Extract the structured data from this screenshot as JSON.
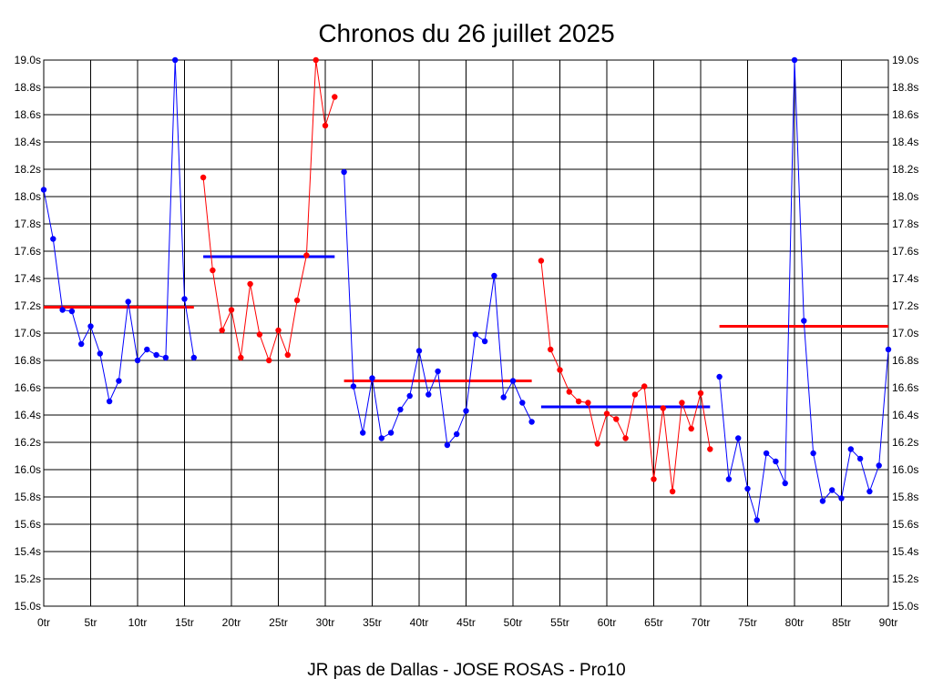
{
  "chart_data": {
    "type": "line",
    "title": "Chronos du 26 juillet 2025",
    "footer": "JR pas de Dallas - JOSE ROSAS - Pro10",
    "xlim": [
      0,
      90
    ],
    "ylim": [
      15.0,
      19.0
    ],
    "grid": true,
    "x_ticks": [
      0,
      5,
      10,
      15,
      20,
      25,
      30,
      35,
      40,
      45,
      50,
      55,
      60,
      65,
      70,
      75,
      80,
      85,
      90
    ],
    "x_tick_labels": [
      "0tr",
      "5tr",
      "10tr",
      "15tr",
      "20tr",
      "25tr",
      "30tr",
      "35tr",
      "40tr",
      "45tr",
      "50tr",
      "55tr",
      "60tr",
      "65tr",
      "70tr",
      "75tr",
      "80tr",
      "85tr",
      "90tr"
    ],
    "y_ticks": [
      15.0,
      15.2,
      15.4,
      15.6,
      15.8,
      16.0,
      16.2,
      16.4,
      16.6,
      16.8,
      17.0,
      17.2,
      17.4,
      17.6,
      17.8,
      18.0,
      18.2,
      18.4,
      18.6,
      18.8,
      19.0
    ],
    "y_tick_labels": [
      "15.0s",
      "15.2s",
      "15.4s",
      "15.6s",
      "15.8s",
      "16.0s",
      "16.2s",
      "16.4s",
      "16.6s",
      "16.8s",
      "17.0s",
      "17.2s",
      "17.4s",
      "17.6s",
      "17.8s",
      "18.0s",
      "18.2s",
      "18.4s",
      "18.6s",
      "18.8s",
      "19.0s"
    ],
    "colors": {
      "blue": "#0000ff",
      "red": "#ff0000"
    },
    "series": [
      {
        "color": "blue",
        "x": [
          0,
          1,
          2,
          3,
          4,
          5,
          6,
          7,
          8,
          9,
          10,
          11,
          12,
          13,
          14,
          15,
          16
        ],
        "y": [
          18.05,
          17.69,
          17.17,
          17.16,
          16.92,
          17.05,
          16.85,
          16.5,
          16.65,
          17.23,
          16.8,
          16.88,
          16.84,
          16.82,
          19.0,
          17.25,
          16.82
        ]
      },
      {
        "color": "red",
        "x": [
          17,
          18,
          19,
          20,
          21,
          22,
          23,
          24,
          25,
          26,
          27,
          28,
          29,
          30,
          31
        ],
        "y": [
          18.14,
          17.46,
          17.02,
          17.17,
          16.82,
          17.36,
          16.99,
          16.8,
          17.02,
          16.84,
          17.24,
          17.57,
          19.0,
          18.52,
          18.73
        ]
      },
      {
        "color": "blue",
        "x": [
          32,
          33,
          34,
          35,
          36,
          37,
          38,
          39,
          40,
          41,
          42,
          43,
          44,
          45,
          46,
          47,
          48,
          49,
          50,
          51,
          52
        ],
        "y": [
          18.18,
          16.61,
          16.27,
          16.67,
          16.23,
          16.27,
          16.44,
          16.54,
          16.87,
          16.55,
          16.72,
          16.18,
          16.26,
          16.43,
          16.99,
          16.94,
          17.42,
          16.53,
          16.65,
          16.49,
          16.35
        ]
      },
      {
        "color": "red",
        "x": [
          53,
          54,
          55,
          56,
          57,
          58,
          59,
          60,
          61,
          62,
          63,
          64,
          65,
          66,
          67,
          68,
          69,
          70,
          71
        ],
        "y": [
          17.53,
          16.88,
          16.73,
          16.57,
          16.5,
          16.49,
          16.19,
          16.41,
          16.37,
          16.23,
          16.55,
          16.61,
          15.93,
          16.45,
          15.84,
          16.49,
          16.3,
          16.56,
          16.15
        ]
      },
      {
        "color": "blue",
        "x": [
          72,
          73,
          74,
          75,
          76,
          77,
          78,
          79,
          80,
          81,
          82,
          83,
          84,
          85,
          86,
          87,
          88,
          89,
          90
        ],
        "y": [
          16.68,
          15.93,
          16.23,
          15.86,
          15.63,
          16.12,
          16.06,
          15.9,
          19.0,
          17.09,
          16.12,
          15.77,
          15.85,
          15.79,
          16.15,
          16.08,
          15.84,
          16.03,
          16.88
        ]
      }
    ],
    "averages": [
      {
        "color": "red",
        "x_start": 0,
        "x_end": 16,
        "y": 17.19
      },
      {
        "color": "blue",
        "x_start": 17,
        "x_end": 31,
        "y": 17.56
      },
      {
        "color": "red",
        "x_start": 32,
        "x_end": 52,
        "y": 16.65
      },
      {
        "color": "blue",
        "x_start": 53,
        "x_end": 71,
        "y": 16.46
      },
      {
        "color": "red",
        "x_start": 72,
        "x_end": 90,
        "y": 17.05
      }
    ]
  }
}
